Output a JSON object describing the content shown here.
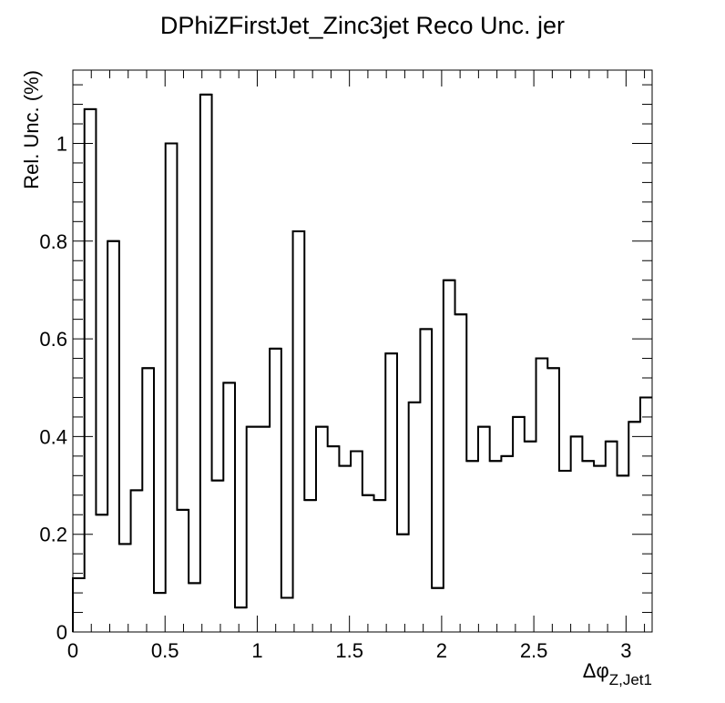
{
  "chart_data": {
    "type": "histogram",
    "title": "DPhiZFirstJet_Zinc3jet Reco Unc. jer",
    "ylabel": "Rel. Unc. (%)",
    "xlabel_main": "Δφ",
    "xlabel_sub": "Z,Jet1",
    "xlim": [
      0,
      3.1416
    ],
    "ylim": [
      0,
      1.15
    ],
    "x_ticks": [
      0,
      0.5,
      1,
      1.5,
      2,
      2.5,
      3
    ],
    "x_tick_labels": [
      "0",
      "0.5",
      "1",
      "1.5",
      "2",
      "2.5",
      "3"
    ],
    "y_ticks": [
      0,
      0.2,
      0.4,
      0.6,
      0.8,
      1
    ],
    "y_tick_labels": [
      "0",
      "0.2",
      "0.4",
      "0.6",
      "0.8",
      "1"
    ],
    "bin_edges_start": 0,
    "bin_width": 0.0628,
    "values": [
      0.11,
      1.07,
      0.24,
      0.8,
      0.18,
      0.29,
      0.54,
      0.08,
      1.0,
      0.25,
      0.1,
      1.1,
      0.31,
      0.51,
      0.05,
      0.42,
      0.42,
      0.58,
      0.07,
      0.82,
      0.27,
      0.42,
      0.38,
      0.34,
      0.37,
      0.28,
      0.27,
      0.57,
      0.2,
      0.47,
      0.62,
      0.09,
      0.72,
      0.65,
      0.35,
      0.42,
      0.35,
      0.36,
      0.44,
      0.39,
      0.56,
      0.54,
      0.33,
      0.4,
      0.35,
      0.34,
      0.39,
      0.32,
      0.43,
      0.48
    ],
    "line_color": "#000000",
    "grid": false
  }
}
